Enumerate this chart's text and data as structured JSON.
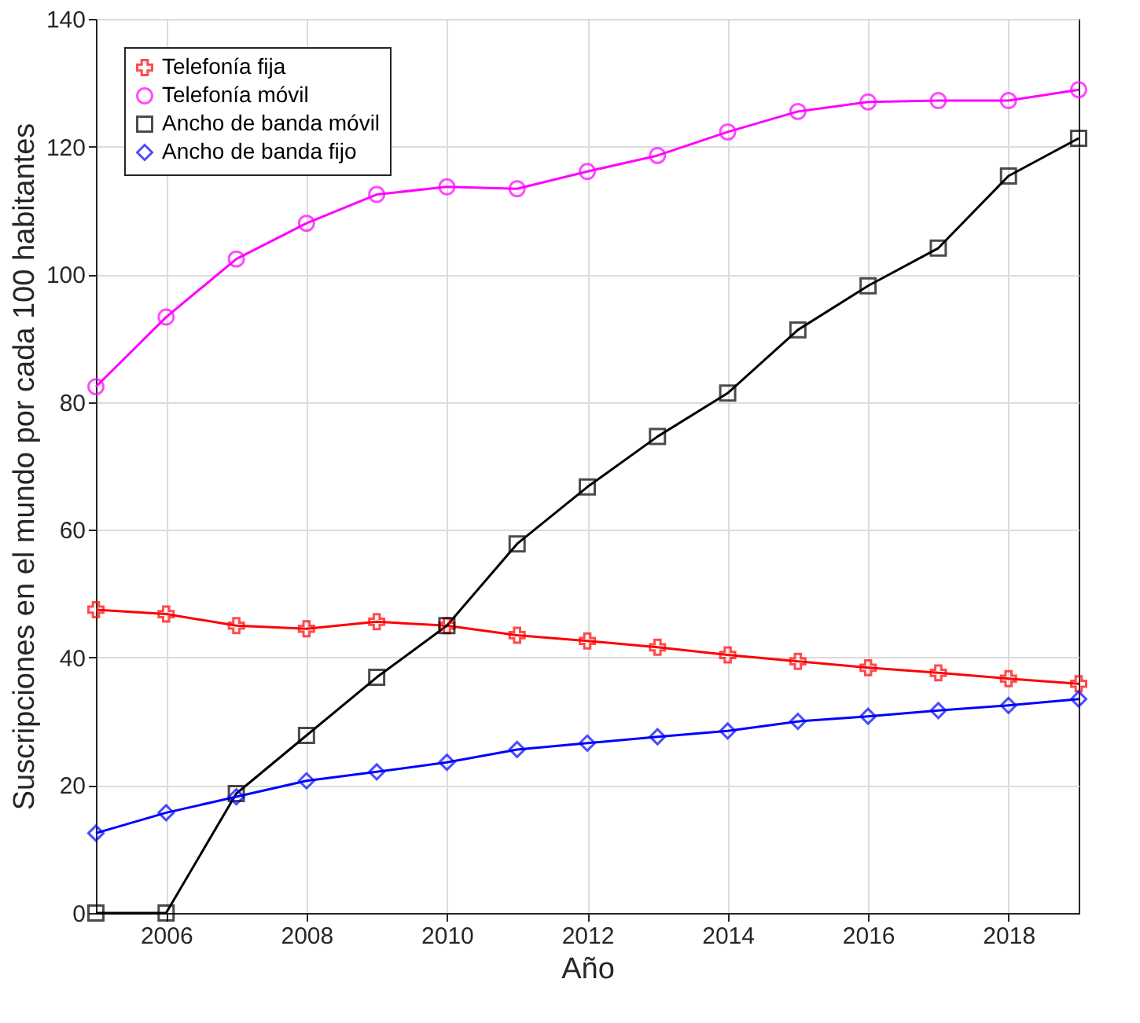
{
  "chart_data": {
    "type": "line",
    "xlabel": "Año",
    "ylabel": "Suscripciones en el mundo por cada 100 habitantes",
    "x": [
      2005,
      2006,
      2007,
      2008,
      2009,
      2010,
      2011,
      2012,
      2013,
      2014,
      2015,
      2016,
      2017,
      2018,
      2019
    ],
    "xlim": [
      2005,
      2019
    ],
    "xticks": [
      2006,
      2008,
      2010,
      2012,
      2014,
      2016,
      2018
    ],
    "ylim": [
      0,
      140
    ],
    "yticks": [
      0,
      20,
      40,
      60,
      80,
      100,
      120,
      140
    ],
    "grid": true,
    "legend": "top left",
    "line_style": "solid",
    "series": [
      {
        "name": "Telefonía fija",
        "color": "#ff0000",
        "marker": "cross",
        "values": [
          47.5,
          46.8,
          45.0,
          44.5,
          45.6,
          45.0,
          43.5,
          42.6,
          41.6,
          40.4,
          39.4,
          38.4,
          37.6,
          36.7,
          35.9
        ]
      },
      {
        "name": "Telefonía móvil",
        "color": "#ff00ff",
        "marker": "circle",
        "values": [
          82.4,
          93.3,
          102.4,
          108.0,
          112.5,
          113.7,
          113.4,
          116.1,
          118.6,
          122.3,
          125.5,
          127.0,
          127.2,
          127.2,
          128.9
        ]
      },
      {
        "name": "Ancho de banda móvil",
        "color": "#000000",
        "marker": "square",
        "values": [
          0,
          0,
          18.7,
          27.8,
          36.9,
          45.0,
          57.8,
          66.7,
          74.6,
          81.4,
          91.3,
          98.2,
          104.1,
          115.4,
          121.3
        ]
      },
      {
        "name": "Ancho de banda fijo",
        "color": "#0000ff",
        "marker": "diamond",
        "values": [
          12.5,
          15.7,
          18.2,
          20.7,
          22.1,
          23.6,
          25.6,
          26.6,
          27.6,
          28.5,
          30.0,
          30.8,
          31.7,
          32.5,
          33.5
        ]
      }
    ]
  }
}
